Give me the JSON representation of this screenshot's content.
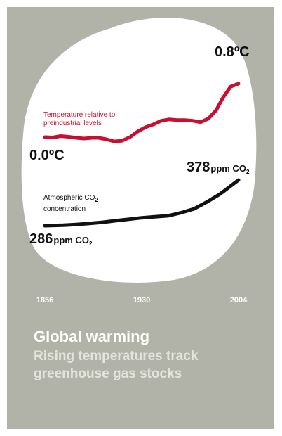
{
  "chart_data": {
    "type": "line",
    "title": "Global warming",
    "subtitle_lines": [
      "Rising temperatures track",
      "greenhouse gas stocks"
    ],
    "x_ticks": [
      "1856",
      "1930",
      "2004"
    ],
    "xlim": [
      1856,
      2004
    ],
    "series": [
      {
        "label_lines": [
          "Temperature relative to",
          "preindustrial levels"
        ],
        "unit": "°C",
        "color": "#c8102e",
        "x": [
          1856,
          1862,
          1868,
          1874,
          1880,
          1886,
          1892,
          1897,
          1903,
          1909,
          1915,
          1921,
          1927,
          1933,
          1939,
          1945,
          1951,
          1957,
          1963,
          1969,
          1975,
          1981,
          1987,
          1992,
          1998,
          2004
        ],
        "y": [
          0.0,
          -0.005,
          0.015,
          0.005,
          -0.01,
          -0.02,
          -0.01,
          -0.01,
          -0.03,
          -0.06,
          -0.05,
          0.0,
          0.08,
          0.14,
          0.18,
          0.23,
          0.25,
          0.24,
          0.24,
          0.23,
          0.21,
          0.26,
          0.38,
          0.55,
          0.71,
          0.75
        ],
        "start_label": {
          "value": "0.0",
          "unit": "ºC"
        },
        "end_label": {
          "value": "0.8",
          "unit": "ºC"
        }
      },
      {
        "label_line1": "Atmospheric CO",
        "label_line1_sub": "2",
        "label_line2": "concentration",
        "unit": "ppm",
        "color": "#111111",
        "x": [
          1856,
          1870,
          1880,
          1890,
          1900,
          1910,
          1920,
          1930,
          1940,
          1950,
          1960,
          1970,
          1980,
          1990,
          2004
        ],
        "y": [
          286,
          287,
          288.5,
          290.5,
          293,
          296,
          299,
          302,
          304,
          306,
          312,
          320,
          334,
          350,
          378
        ],
        "start_label": {
          "value": "286",
          "unit": "ppm CO",
          "sub": "2"
        },
        "end_label": {
          "value": "378",
          "unit": "ppm CO",
          "sub": "2"
        }
      }
    ]
  }
}
